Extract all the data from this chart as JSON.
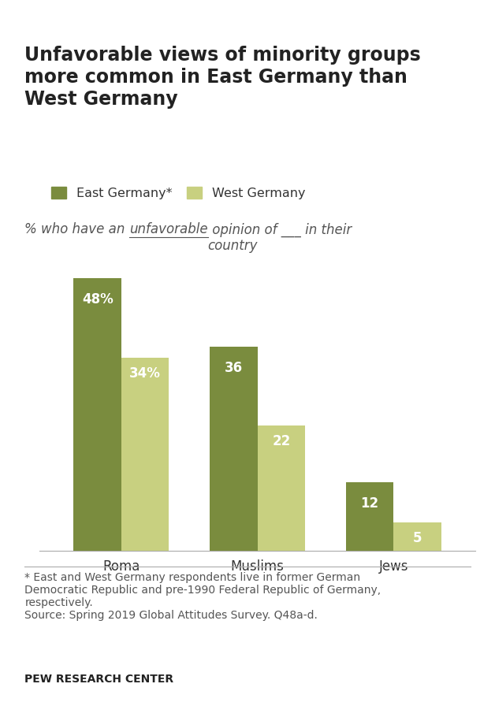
{
  "title": "Unfavorable views of minority groups\nmore common in East Germany than\nWest Germany",
  "categories": [
    "Roma",
    "Muslims",
    "Jews"
  ],
  "east_germany": [
    48,
    36,
    12
  ],
  "west_germany": [
    34,
    22,
    5
  ],
  "east_labels": [
    "48%",
    "36",
    "12"
  ],
  "west_labels": [
    "34%",
    "22",
    "5"
  ],
  "east_color": "#7a8c3e",
  "west_color": "#c8d080",
  "bar_width": 0.35,
  "ylim": [
    0,
    56
  ],
  "legend_labels": [
    "East Germany*",
    "West Germany"
  ],
  "footnote_line1": "* East and West Germany respondents live in former German",
  "footnote_line2": "Democratic Republic and pre-1990 Federal Republic of Germany,",
  "footnote_line3": "respectively.",
  "footnote_line4": "Source: Spring 2019 Global Attitudes Survey. Q48a-d.",
  "source_label": "PEW RESEARCH CENTER",
  "background_color": "#ffffff",
  "title_fontsize": 17,
  "subtitle_fontsize": 12,
  "tick_fontsize": 12,
  "legend_fontsize": 11.5,
  "footnote_fontsize": 10,
  "bar_label_fontsize": 12,
  "subtitle_seg1": "% who have an ",
  "subtitle_seg2": "unfavorable",
  "subtitle_seg3": " opinion of ___ in their\ncountry"
}
